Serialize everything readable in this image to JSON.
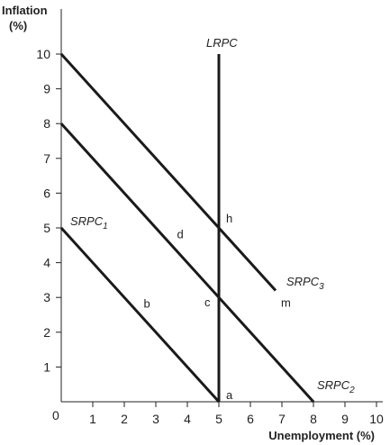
{
  "chart_data": {
    "type": "line",
    "title": "",
    "ylabel_line1": "Inflation",
    "ylabel_line2": "(%)",
    "xlabel": "Unemployment (%)",
    "xlim": [
      0,
      10
    ],
    "ylim": [
      0,
      10
    ],
    "x_ticks": [
      "1",
      "2",
      "3",
      "4",
      "5",
      "6",
      "7",
      "8",
      "9",
      "10"
    ],
    "y_ticks": [
      "1",
      "2",
      "3",
      "4",
      "5",
      "6",
      "7",
      "8",
      "9",
      "10"
    ],
    "origin_label": "0",
    "grid": false,
    "series": [
      {
        "name": "SRPC1",
        "label_main": "SRPC",
        "label_sub": "1",
        "x": [
          0,
          5
        ],
        "y": [
          5,
          0
        ]
      },
      {
        "name": "SRPC2",
        "label_main": "SRPC",
        "label_sub": "2",
        "x": [
          0,
          8
        ],
        "y": [
          8,
          0
        ]
      },
      {
        "name": "SRPC3",
        "label_main": "SRPC",
        "label_sub": "3",
        "x": [
          0,
          6.8
        ],
        "y": [
          10,
          3.2
        ]
      },
      {
        "name": "LRPC",
        "label_main": "LRPC",
        "label_sub": "",
        "x": [
          5,
          5
        ],
        "y": [
          0,
          10
        ]
      }
    ],
    "points": [
      {
        "label": "a",
        "x": 5,
        "y": 0
      },
      {
        "label": "b",
        "x": 2.5,
        "y": 2.5
      },
      {
        "label": "c",
        "x": 5,
        "y": 3
      },
      {
        "label": "d",
        "x": 3.5,
        "y": 4.5
      },
      {
        "label": "h",
        "x": 5,
        "y": 5
      },
      {
        "label": "m",
        "x": 6.8,
        "y": 3.2
      }
    ]
  }
}
